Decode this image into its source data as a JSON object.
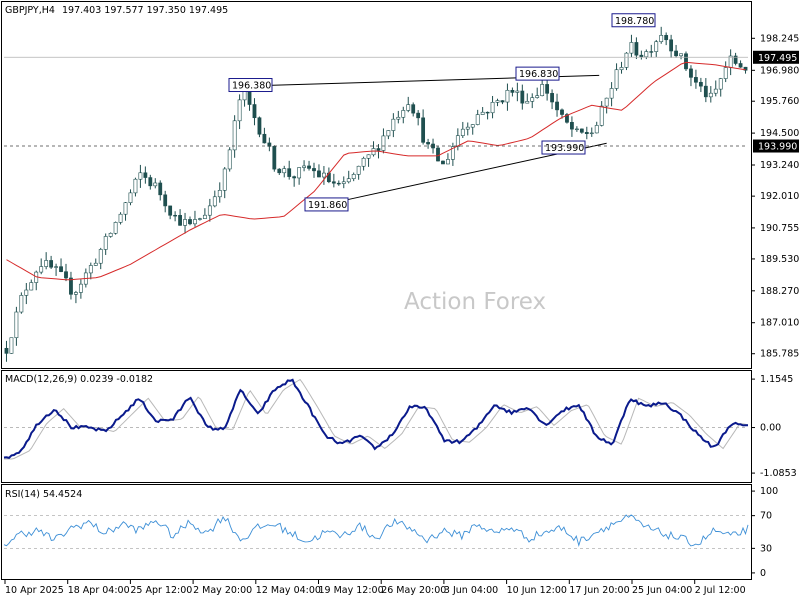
{
  "header": {
    "symbol": "GBPJPY,H4",
    "ohlc": "197.403 197.577 197.350 197.495",
    "watermark": "Action Forex"
  },
  "colors": {
    "candle": "#1f4f4f",
    "sma": "#d62a2a",
    "macd": "#0a1a8c",
    "signal": "#b8b8b8",
    "rsi": "#3d8fd6",
    "grid": "#b0b0b0",
    "label_border": "#1a1a8c",
    "price_tag": "#000000"
  },
  "chart_data": [
    {
      "type": "candlestick",
      "name": "price",
      "ylim": [
        185.3,
        199.6
      ],
      "y_ticks": [
        "198.245",
        "196.980",
        "195.760",
        "194.500",
        "193.240",
        "192.010",
        "190.755",
        "189.530",
        "188.270",
        "187.010",
        "185.785"
      ],
      "y_tick_values": [
        198.245,
        196.98,
        195.76,
        194.5,
        193.24,
        192.01,
        190.755,
        189.53,
        188.27,
        187.01,
        185.785
      ],
      "x_ticks": [
        "10 Apr 2025",
        "18 Apr 04:00",
        "25 Apr 12:00",
        "2 May 20:00",
        "12 May 04:00",
        "19 May 12:00",
        "26 May 20:00",
        "3 Jun 04:00",
        "10 Jun 12:00",
        "17 Jun 20:00",
        "25 Jun 04:00",
        "2 Jul 12:00"
      ],
      "anchors": [
        186.0,
        188.2,
        189.4,
        189.0,
        188.2,
        189.2,
        190.3,
        191.6,
        192.9,
        192.3,
        191.2,
        190.8,
        191.5,
        192.9,
        196.2,
        194.8,
        193.2,
        192.8,
        193.1,
        192.7,
        192.3,
        193.1,
        193.9,
        195.0,
        195.9,
        194.0,
        193.2,
        194.6,
        195.2,
        195.6,
        196.2,
        195.8,
        196.4,
        195.1,
        194.4,
        194.6,
        196.3,
        197.9,
        197.6,
        198.5,
        197.6,
        196.5,
        195.8,
        197.4,
        197.1
      ],
      "sma_anchors": [
        189.5,
        188.8,
        188.7,
        188.8,
        189.3,
        190.0,
        190.7,
        191.3,
        191.1,
        191.2,
        192.2,
        193.7,
        193.8,
        193.6,
        193.6,
        194.2,
        194.0,
        194.3,
        195.1,
        195.6,
        195.4,
        196.5,
        197.3,
        197.2,
        197.0
      ],
      "levels": [
        {
          "label": "196.380",
          "value": 196.38
        },
        {
          "label": "196.830",
          "value": 196.83
        },
        {
          "label": "191.860",
          "value": 191.86
        },
        {
          "label": "193.990",
          "value": 193.99
        },
        {
          "label": "198.780",
          "value": 198.78
        }
      ],
      "price_tag": {
        "label": "197.495",
        "value": 197.495
      },
      "support_tag": {
        "label": "193.990",
        "value": 193.99
      },
      "upper_trendline": [
        {
          "t": 0.35,
          "v": 196.38
        },
        {
          "t": 0.8,
          "v": 196.78
        }
      ],
      "lower_trendline": [
        {
          "t": 0.46,
          "v": 191.86
        },
        {
          "t": 0.81,
          "v": 194.1
        }
      ]
    },
    {
      "type": "line",
      "name": "MACD",
      "label": "MACD(12,26,9) 0.0239 -0.0182",
      "ylim": [
        -1.25,
        1.3
      ],
      "y_ticks": [
        "1.1545",
        "0.00",
        "-1.0853"
      ],
      "y_tick_values": [
        1.1545,
        0.0,
        -1.0853
      ],
      "macd_anchors": [
        -0.75,
        -0.55,
        0.1,
        0.45,
        0.0,
        0.0,
        -0.1,
        0.3,
        0.7,
        0.15,
        0.2,
        0.75,
        0.0,
        -0.05,
        0.9,
        0.3,
        0.9,
        1.15,
        0.5,
        -0.2,
        -0.4,
        -0.2,
        -0.5,
        -0.15,
        0.5,
        0.45,
        -0.3,
        -0.35,
        0.0,
        0.55,
        0.35,
        0.5,
        0.05,
        0.4,
        0.55,
        -0.2,
        -0.4,
        0.7,
        0.5,
        0.6,
        0.3,
        -0.15,
        -0.5,
        0.1,
        0.02
      ]
    },
    {
      "type": "line",
      "name": "RSI",
      "label": "RSI(14) 54.4524",
      "ylim": [
        -5,
        105
      ],
      "y_ticks": [
        "100",
        "70",
        "30",
        "0"
      ],
      "y_tick_values": [
        100,
        70,
        30,
        0
      ],
      "rsi_anchors": [
        35,
        48,
        52,
        40,
        55,
        62,
        48,
        60,
        52,
        65,
        45,
        62,
        48,
        70,
        40,
        55,
        60,
        48,
        38,
        50,
        45,
        58,
        42,
        62,
        55,
        40,
        52,
        45,
        60,
        48,
        56,
        42,
        50,
        55,
        38,
        50,
        60,
        68,
        55,
        48,
        42,
        35,
        52,
        44,
        54
      ]
    }
  ]
}
